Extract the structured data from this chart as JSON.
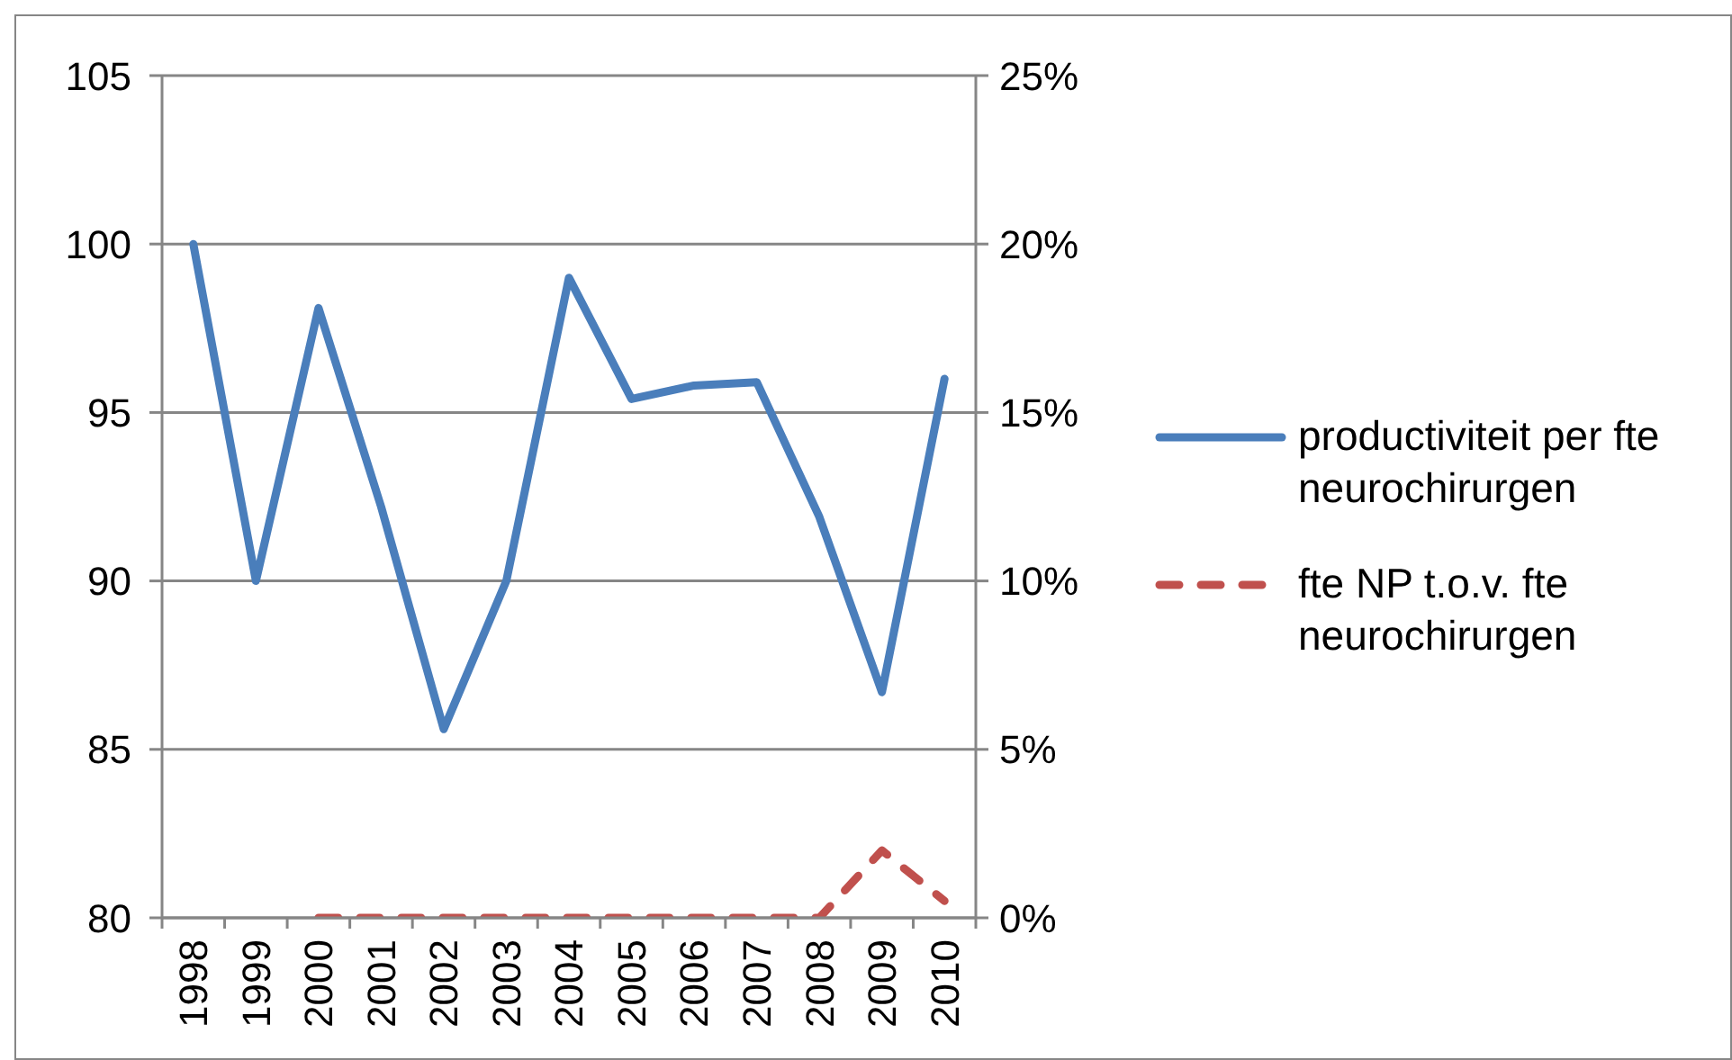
{
  "chart_data": {
    "type": "line",
    "categories": [
      "1998",
      "1999",
      "2000",
      "2001",
      "2002",
      "2003",
      "2004",
      "2005",
      "2006",
      "2007",
      "2008",
      "2009",
      "2010"
    ],
    "series": [
      {
        "name": "productiviteit per fte neurochirurgen",
        "color": "#4a7ebb",
        "line_style": "solid",
        "values": [
          100,
          90,
          98.1,
          92.2,
          85.6,
          90,
          99,
          95.4,
          95.8,
          95.9,
          91.9,
          86.7,
          96
        ]
      },
      {
        "name": "fte NP t.o.v. fte neurochirurgen",
        "color": "#c0504d",
        "line_style": "dashed",
        "axis": "y2",
        "values": [
          null,
          null,
          0,
          0,
          0,
          0,
          0,
          0,
          0,
          0,
          0,
          2,
          0.5
        ]
      }
    ],
    "ylim": [
      80,
      105
    ],
    "yticks": [
      80,
      85,
      90,
      95,
      100,
      105
    ],
    "y2lim": [
      0,
      25
    ],
    "y2ticks": [
      {
        "value": 0,
        "label": "0%"
      },
      {
        "value": 5,
        "label": "5%"
      },
      {
        "value": 10,
        "label": "10%"
      },
      {
        "value": 15,
        "label": "15%"
      },
      {
        "value": 20,
        "label": "20%"
      },
      {
        "value": 25,
        "label": "25%"
      }
    ],
    "grid": "y",
    "legend": "right",
    "marker": "none"
  }
}
